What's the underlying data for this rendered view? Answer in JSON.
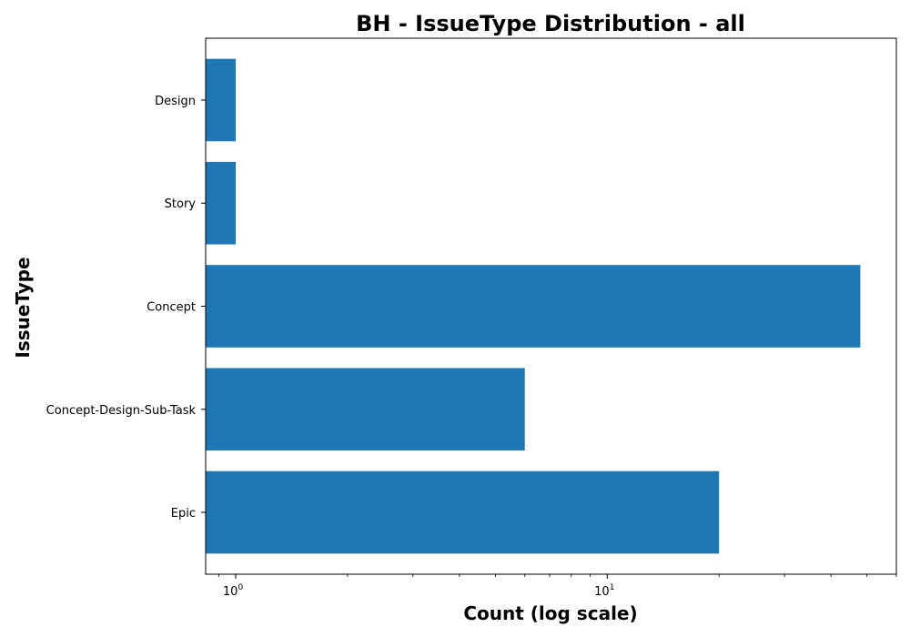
{
  "chart_data": {
    "type": "bar",
    "orientation": "horizontal",
    "title": "BH - IssueType Distribution - all",
    "xlabel": "Count (log scale)",
    "ylabel": "IssueType",
    "x_scale": "log",
    "xlim": [
      0.83,
      60
    ],
    "categories": [
      "Design",
      "Story",
      "Concept",
      "Concept-Design-Sub-Task",
      "Epic"
    ],
    "values": [
      1,
      1,
      48,
      6,
      20
    ],
    "bar_color": "#1f77b4",
    "major_ticks": [
      {
        "value": 1,
        "base": "10",
        "exponent": "0"
      },
      {
        "value": 10,
        "base": "10",
        "exponent": "1"
      }
    ],
    "grid": false,
    "legend": "none"
  }
}
